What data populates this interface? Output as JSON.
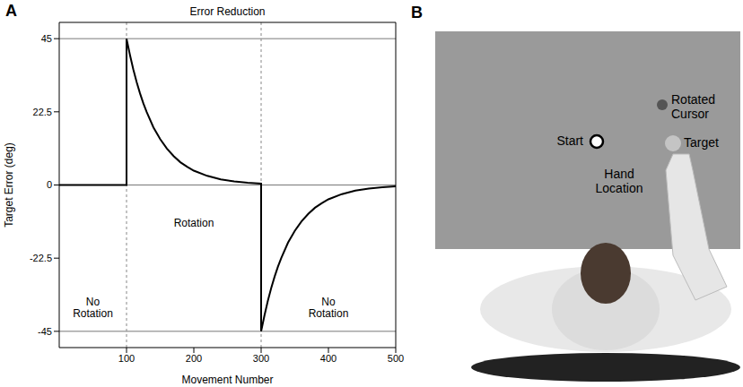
{
  "chart_data": {
    "type": "line",
    "label": "A",
    "title": "Error Reduction",
    "x_label": "Movement Number",
    "y_label": "Target Error (deg)",
    "x": [
      0,
      100,
      100,
      105,
      110,
      115,
      120,
      125,
      130,
      140,
      150,
      160,
      170,
      180,
      190,
      200,
      220,
      240,
      260,
      280,
      300,
      300,
      305,
      310,
      315,
      320,
      325,
      330,
      340,
      350,
      360,
      370,
      380,
      390,
      400,
      420,
      440,
      460,
      480,
      500
    ],
    "values": [
      0,
      0,
      45,
      40.1,
      35.6,
      31.7,
      28.2,
      25.1,
      22.4,
      17.7,
      14.1,
      11.2,
      8.9,
      7.0,
      5.6,
      4.4,
      2.8,
      1.7,
      1.1,
      0.7,
      0.4,
      -45,
      -40.1,
      -35.6,
      -31.7,
      -28.2,
      -25.1,
      -22.4,
      -17.7,
      -14.1,
      -11.2,
      -8.9,
      -7.0,
      -5.6,
      -4.4,
      -2.8,
      -1.7,
      -1.1,
      -0.7,
      -0.4
    ],
    "color": "#000000",
    "xlim": [
      0,
      500
    ],
    "xticks": [
      100,
      200,
      300,
      400,
      500
    ],
    "ylim": [
      -50,
      50
    ],
    "yticks": [
      -45,
      -22.5,
      0,
      22.5,
      45
    ],
    "hlines": [
      -45,
      0,
      45
    ],
    "vlines": [
      100,
      300
    ],
    "annotations": [
      {
        "text": "No Rotation",
        "x": 50,
        "y": -38
      },
      {
        "text": "Rotation",
        "x": 200,
        "y": -12
      },
      {
        "text": "No Rotation",
        "x": 400,
        "y": -38
      }
    ]
  },
  "diagram": {
    "label": "B",
    "labels": {
      "rotated_cursor": "Rotated Cursor",
      "start": "Start",
      "target": "Target",
      "hand_location": "Hand Location"
    }
  }
}
